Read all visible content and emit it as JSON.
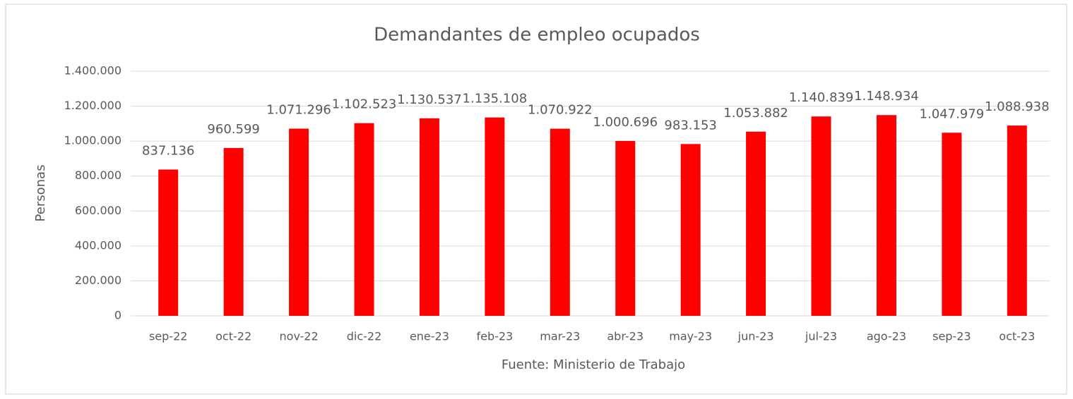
{
  "chart_data": {
    "type": "bar",
    "title": "Demandantes de empleo ocupados",
    "y_label": "Personas",
    "x_label": "Fuente: Ministerio de Trabajo",
    "categories": [
      "sep-22",
      "oct-22",
      "nov-22",
      "dic-22",
      "ene-23",
      "feb-23",
      "mar-23",
      "abr-23",
      "may-23",
      "jun-23",
      "jul-23",
      "ago-23",
      "sep-23",
      "oct-23"
    ],
    "values": [
      837136,
      960599,
      1071296,
      1102523,
      1130537,
      1135108,
      1070922,
      1000696,
      983153,
      1053882,
      1140839,
      1148934,
      1047979,
      1088938
    ],
    "value_labels": [
      "837.136",
      "960.599",
      "1.071.296",
      "1.102.523",
      "1.130.537",
      "1.135.108",
      "1.070.922",
      "1.000.696",
      "983.153",
      "1.053.882",
      "1.140.839",
      "1.148.934",
      "1.047.979",
      "1.088.938"
    ],
    "color": "#ff0000",
    "ylim": [
      0,
      1400000
    ],
    "yticks": [
      0,
      {
        "value": 200000,
        "label": "200.000"
      },
      {
        "value": 400000,
        "label": "400.000"
      },
      {
        "value": 600000,
        "label": "600.000"
      },
      {
        "value": 800000,
        "label": "800.000"
      },
      {
        "value": 1000000,
        "label": "1.000.000"
      },
      {
        "value": 1200000,
        "label": "1.200.000"
      },
      {
        "value": 1400000,
        "label": "1.400.000"
      }
    ],
    "grid": true
  }
}
